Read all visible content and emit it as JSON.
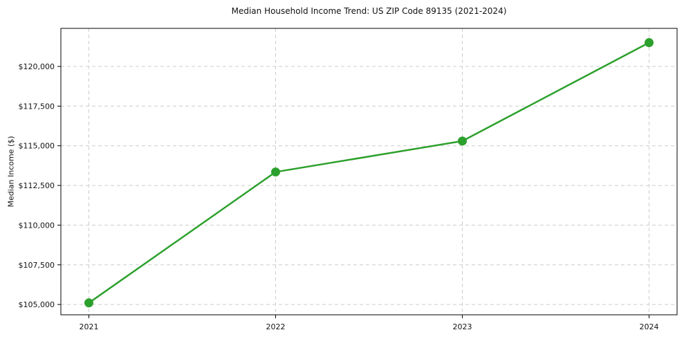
{
  "chart_data": {
    "type": "line",
    "title": "Median Household Income Trend: US ZIP Code 89135 (2021-2024)",
    "xlabel": "",
    "ylabel": "Median Income ($)",
    "x": [
      2021,
      2022,
      2023,
      2024
    ],
    "series": [
      {
        "name": "Median Household Income",
        "values": [
          105100,
          113350,
          115300,
          121500
        ],
        "color": "#2ca02c",
        "marker": "circle"
      }
    ],
    "xtick_labels": [
      "2021",
      "2022",
      "2023",
      "2024"
    ],
    "ytick_values": [
      105000,
      107500,
      110000,
      112500,
      115000,
      117500,
      120000
    ],
    "ytick_labels": [
      "$105,000",
      "$107,500",
      "$110,000",
      "$112,500",
      "$115,000",
      "$117,500",
      "$120,000"
    ],
    "xlim": [
      2020.85,
      2024.15
    ],
    "ylim": [
      104350,
      122400
    ],
    "grid": true,
    "grid_color": "#cccccc",
    "axis_color": "#000000",
    "text_color": "#111111",
    "legend": "none"
  }
}
